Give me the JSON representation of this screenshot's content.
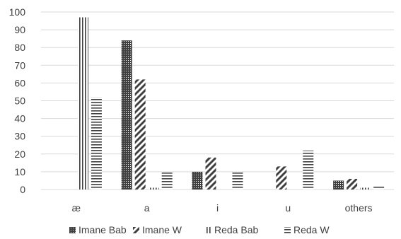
{
  "chart_data": {
    "type": "bar",
    "categories": [
      "æ",
      "a",
      "i",
      "u",
      "others"
    ],
    "series": [
      {
        "name": "Imane  Bab",
        "pattern": "dots",
        "values": [
          0,
          84,
          10,
          0,
          5
        ]
      },
      {
        "name": "Imane  W",
        "pattern": "diagonal",
        "values": [
          0,
          62,
          18,
          13,
          6
        ]
      },
      {
        "name": "Reda Bab",
        "pattern": "vertical",
        "values": [
          97,
          1,
          0,
          0,
          1
        ]
      },
      {
        "name": "Reda W",
        "pattern": "horizontal",
        "values": [
          52,
          10,
          10,
          22,
          2
        ]
      }
    ],
    "ylim": [
      0,
      100
    ],
    "yticks": [
      0,
      10,
      20,
      30,
      40,
      50,
      60,
      70,
      80,
      90,
      100
    ],
    "grid": true,
    "legend_position": "bottom",
    "colors": {
      "bar": "#404040",
      "grid": "#d9d9d9",
      "text": "#404040",
      "background": "#ffffff"
    }
  }
}
